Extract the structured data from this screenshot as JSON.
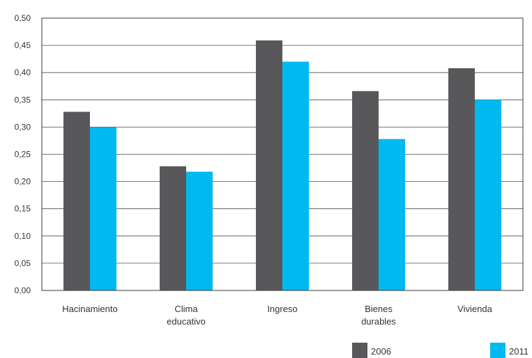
{
  "chart_data": {
    "type": "bar",
    "title": "",
    "xlabel": "",
    "ylabel": "",
    "ylim": [
      0,
      0.5
    ],
    "yticks": [
      "0,00",
      "0,05",
      "0,10",
      "0,15",
      "0,20",
      "0,25",
      "0,30",
      "0,35",
      "0,40",
      "0,45",
      "0,50"
    ],
    "ytick_values": [
      0,
      0.05,
      0.1,
      0.15,
      0.2,
      0.25,
      0.3,
      0.35,
      0.4,
      0.45,
      0.5
    ],
    "categories": [
      [
        "Hacinamiento"
      ],
      [
        "Clima",
        "educativo"
      ],
      [
        "Ingreso"
      ],
      [
        "Bienes",
        "durables"
      ],
      [
        "Vivienda"
      ]
    ],
    "series": [
      {
        "name": "2006",
        "color": "#58585a",
        "values": [
          0.328,
          0.228,
          0.459,
          0.366,
          0.408
        ]
      },
      {
        "name": "2011",
        "color": "#00b9f1",
        "values": [
          0.3,
          0.218,
          0.42,
          0.278,
          0.35
        ]
      }
    ],
    "grid": true,
    "legend_position": "bottom-right"
  }
}
